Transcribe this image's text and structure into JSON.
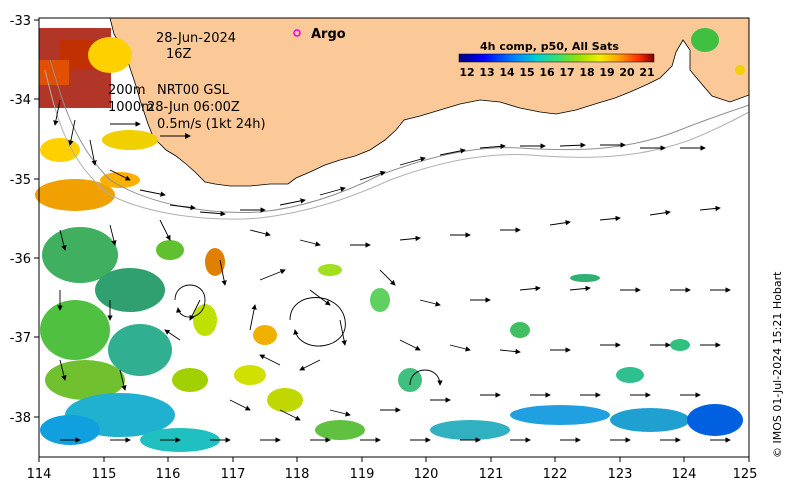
{
  "map": {
    "date": "28-Jun-2024",
    "hour": "16Z",
    "isobath_200": "200m",
    "isobath_1000": "1000m",
    "product": "NRT00 GSL",
    "product_time": "28-Jun 06:00Z",
    "scale_label": "0.5m/s (1kt 24h)",
    "argo_label": "Argo",
    "colorbar_title": "4h comp, p50, All Sats",
    "colorbar_ticks": [
      "12",
      "13",
      "14",
      "15",
      "16",
      "17",
      "18",
      "19",
      "20",
      "21"
    ],
    "credit": "© IMOS 01-Jul-2024 15:21 Hobart",
    "x_ticks": [
      "114",
      "115",
      "116",
      "117",
      "118",
      "119",
      "120",
      "121",
      "122",
      "123",
      "124",
      "125"
    ],
    "y_ticks": [
      "-33",
      "-34",
      "-35",
      "-36",
      "-37",
      "-38"
    ],
    "colors": {
      "land": "#fbc898",
      "argo": "#e600e6",
      "sst_low": "#00007f",
      "sst_high": "#7f0000"
    }
  }
}
